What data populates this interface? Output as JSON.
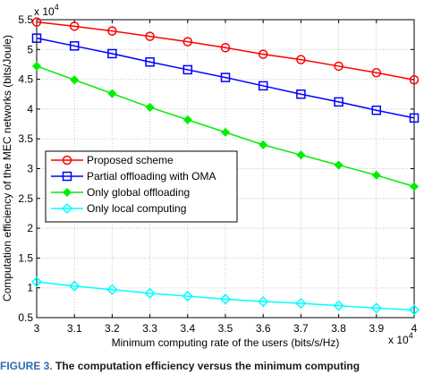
{
  "chart_data": {
    "type": "line",
    "xlabel": "Minimum computing rate of the users (bits/s/Hz)",
    "ylabel": "Computation efficiency of the MEC networks (bits/Joule)",
    "x_multiplier_label": "x 10",
    "x_multiplier_exp": "4",
    "y_multiplier_label": "x 10",
    "y_multiplier_exp": "4",
    "xlim": [
      3,
      4
    ],
    "ylim": [
      0.5,
      5.5
    ],
    "xticks": [
      3,
      3.1,
      3.2,
      3.3,
      3.4,
      3.5,
      3.6,
      3.7,
      3.8,
      3.9,
      4
    ],
    "xtick_labels": [
      "3",
      "3.1",
      "3.2",
      "3.3",
      "3.4",
      "3.5",
      "3.6",
      "3.7",
      "3.8",
      "3.9",
      "4"
    ],
    "yticks": [
      0.5,
      1,
      1.5,
      2,
      2.5,
      3,
      3.5,
      4,
      4.5,
      5,
      5.5
    ],
    "ytick_labels": [
      "0.5",
      "1",
      "1.5",
      "2",
      "2.5",
      "3",
      "3.5",
      "4",
      "4.5",
      "5",
      "5.5"
    ],
    "grid": true,
    "legend_position": "center-left",
    "x": [
      3,
      3.1,
      3.2,
      3.3,
      3.4,
      3.5,
      3.6,
      3.7,
      3.8,
      3.9,
      4
    ],
    "series": [
      {
        "name": "Proposed scheme",
        "color": "#ff0000",
        "marker": "circle",
        "values": [
          5.46,
          5.39,
          5.31,
          5.22,
          5.13,
          5.03,
          4.92,
          4.83,
          4.72,
          4.61,
          4.49
        ]
      },
      {
        "name": "Partial offloading with OMA",
        "color": "#0000ff",
        "marker": "square",
        "values": [
          5.19,
          5.06,
          4.93,
          4.79,
          4.66,
          4.53,
          4.39,
          4.25,
          4.12,
          3.98,
          3.85
        ]
      },
      {
        "name": "Only global offloading",
        "color": "#00ee00",
        "marker": "diamond-filled",
        "values": [
          4.72,
          4.49,
          4.26,
          4.03,
          3.82,
          3.61,
          3.4,
          3.23,
          3.06,
          2.89,
          2.7
        ]
      },
      {
        "name": "Only local computing",
        "color": "#00ffff",
        "marker": "diamond",
        "values": [
          1.1,
          1.03,
          0.97,
          0.91,
          0.86,
          0.81,
          0.77,
          0.74,
          0.7,
          0.66,
          0.63
        ]
      }
    ]
  },
  "caption": {
    "lead": "FIGURE 3.",
    "text": "The computation efficiency versus the minimum computing"
  }
}
